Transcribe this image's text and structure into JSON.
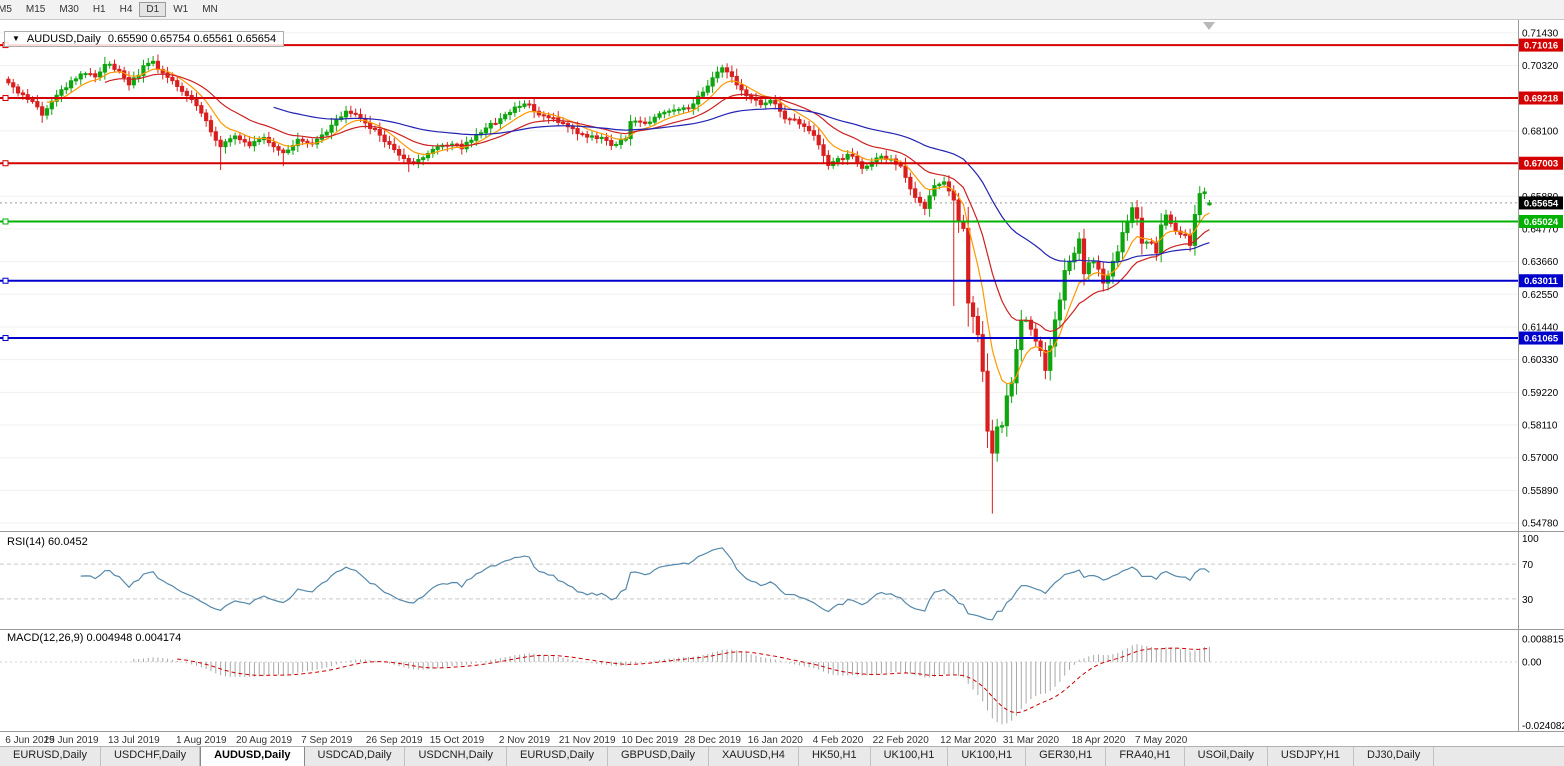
{
  "toolbar": {
    "timeframes": [
      {
        "label": "M5",
        "active": false
      },
      {
        "label": "M15",
        "active": false
      },
      {
        "label": "M30",
        "active": false
      },
      {
        "label": "H1",
        "active": false
      },
      {
        "label": "H4",
        "active": false
      },
      {
        "label": "D1",
        "active": true
      },
      {
        "label": "W1",
        "active": false
      },
      {
        "label": "MN",
        "active": false
      }
    ]
  },
  "chart_header": {
    "dropdown_icon": "▼",
    "symbol": "AUDUSD,Daily",
    "ohlc": "0.65590 0.65754 0.65561 0.65654"
  },
  "rsi_panel": {
    "label": "RSI(14) 60.0452"
  },
  "macd_panel": {
    "label": "MACD(12,26,9) 0.004948 0.004174"
  },
  "tabs": {
    "active_index": 2,
    "items": [
      "EURUSD,Daily",
      "USDCHF,Daily",
      "AUDUSD,Daily",
      "USDCAD,Daily",
      "USDCNH,Daily",
      "EURUSD,Daily",
      "GBPUSD,Daily",
      "XAUUSD,H4",
      "HK50,H1",
      "UK100,H1",
      "UK100,H1",
      "GER30,H1",
      "FRA40,H1",
      "USOil,Daily",
      "USDJPY,H1",
      "DJ30,Daily"
    ]
  },
  "chart_data": {
    "type": "candlestick",
    "symbol": "AUDUSD",
    "timeframe": "Daily",
    "current_candle": {
      "open": 0.6559,
      "high": 0.65754,
      "low": 0.65561,
      "close": 0.65654
    },
    "last_price_label": "0.65654",
    "candle_count": 250,
    "up_color": "#0fa50f",
    "down_color": "#d91f1f",
    "price_axis": {
      "max": 0.718,
      "min": 0.5451,
      "ticks": [
        "0.71430",
        "0.70320",
        "0.69210",
        "0.68100",
        "0.66990",
        "0.65880",
        "0.64770",
        "0.63660",
        "0.62550",
        "0.61440",
        "0.60330",
        "0.59220",
        "0.58110",
        "0.57000",
        "0.55890",
        "0.54780"
      ]
    },
    "horizontal_lines": [
      {
        "price": 0.71016,
        "label": "0.71016",
        "color": "#d40000",
        "kind": "resistance"
      },
      {
        "price": 0.69218,
        "label": "0.69218",
        "color": "#d40000",
        "kind": "resistance"
      },
      {
        "price": 0.67003,
        "label": "0.67003",
        "color": "#d40000",
        "kind": "resistance"
      },
      {
        "price": 0.65024,
        "label": "0.65024",
        "color": "#00b100",
        "kind": "support"
      },
      {
        "price": 0.63011,
        "label": "0.63011",
        "color": "#0000cc",
        "kind": "support"
      },
      {
        "price": 0.61065,
        "label": "0.61065",
        "color": "#0000cc",
        "kind": "support"
      }
    ],
    "moving_averages": [
      {
        "period": 8,
        "color": "#ff9900"
      },
      {
        "period": 20,
        "color": "#cc2222"
      },
      {
        "period": 55,
        "color": "#2323b4"
      }
    ],
    "close_anchors": [
      [
        0,
        0.698
      ],
      [
        2,
        0.6938
      ],
      [
        5,
        0.6905
      ],
      [
        7,
        0.687
      ],
      [
        10,
        0.6928
      ],
      [
        13,
        0.6975
      ],
      [
        16,
        0.701
      ],
      [
        18,
        0.699
      ],
      [
        20,
        0.704
      ],
      [
        23,
        0.701
      ],
      [
        25,
        0.6965
      ],
      [
        28,
        0.7025
      ],
      [
        30,
        0.7042
      ],
      [
        33,
        0.699
      ],
      [
        36,
        0.6945
      ],
      [
        39,
        0.6895
      ],
      [
        41,
        0.684
      ],
      [
        44,
        0.6755
      ],
      [
        47,
        0.679
      ],
      [
        50,
        0.6765
      ],
      [
        53,
        0.6785
      ],
      [
        57,
        0.6735
      ],
      [
        60,
        0.6775
      ],
      [
        63,
        0.677
      ],
      [
        66,
        0.6805
      ],
      [
        70,
        0.688
      ],
      [
        73,
        0.685
      ],
      [
        76,
        0.681
      ],
      [
        79,
        0.676
      ],
      [
        83,
        0.67
      ],
      [
        85,
        0.671
      ],
      [
        88,
        0.6745
      ],
      [
        91,
        0.6765
      ],
      [
        94,
        0.6755
      ],
      [
        96,
        0.678
      ],
      [
        99,
        0.6825
      ],
      [
        102,
        0.685
      ],
      [
        105,
        0.689
      ],
      [
        108,
        0.69
      ],
      [
        110,
        0.6865
      ],
      [
        113,
        0.685
      ],
      [
        116,
        0.6825
      ],
      [
        119,
        0.6795
      ],
      [
        122,
        0.679
      ],
      [
        125,
        0.6765
      ],
      [
        128,
        0.678
      ],
      [
        129,
        0.6848
      ],
      [
        132,
        0.683
      ],
      [
        135,
        0.6865
      ],
      [
        138,
        0.688
      ],
      [
        141,
        0.689
      ],
      [
        144,
        0.694
      ],
      [
        146,
        0.6985
      ],
      [
        148,
        0.7025
      ],
      [
        150,
        0.699
      ],
      [
        153,
        0.6925
      ],
      [
        156,
        0.69
      ],
      [
        158,
        0.692
      ],
      [
        161,
        0.685
      ],
      [
        164,
        0.684
      ],
      [
        167,
        0.68
      ],
      [
        170,
        0.669
      ],
      [
        173,
        0.672
      ],
      [
        175,
        0.673
      ],
      [
        177,
        0.668
      ],
      [
        180,
        0.672
      ],
      [
        183,
        0.6715
      ],
      [
        185,
        0.669
      ],
      [
        187,
        0.661
      ],
      [
        189,
        0.6565
      ],
      [
        190,
        0.6545
      ],
      [
        192,
        0.6625
      ],
      [
        194,
        0.664
      ],
      [
        196,
        0.658
      ],
      [
        197,
        0.6495
      ],
      [
        198,
        0.6485
      ],
      [
        199,
        0.623
      ],
      [
        200,
        0.6185
      ],
      [
        201,
        0.612
      ],
      [
        202,
        0.5995
      ],
      [
        203,
        0.579
      ],
      [
        204,
        0.572
      ],
      [
        205,
        0.58
      ],
      [
        206,
        0.581
      ],
      [
        207,
        0.5905
      ],
      [
        208,
        0.596
      ],
      [
        209,
        0.6065
      ],
      [
        210,
        0.6165
      ],
      [
        211,
        0.617
      ],
      [
        212,
        0.6135
      ],
      [
        213,
        0.6095
      ],
      [
        214,
        0.606
      ],
      [
        215,
        0.5995
      ],
      [
        216,
        0.6085
      ],
      [
        217,
        0.617
      ],
      [
        218,
        0.6235
      ],
      [
        219,
        0.634
      ],
      [
        221,
        0.6395
      ],
      [
        222,
        0.644
      ],
      [
        223,
        0.633
      ],
      [
        224,
        0.636
      ],
      [
        225,
        0.6365
      ],
      [
        226,
        0.634
      ],
      [
        227,
        0.6295
      ],
      [
        228,
        0.632
      ],
      [
        229,
        0.637
      ],
      [
        230,
        0.6395
      ],
      [
        231,
        0.646
      ],
      [
        232,
        0.6495
      ],
      [
        233,
        0.655
      ],
      [
        234,
        0.651
      ],
      [
        235,
        0.6425
      ],
      [
        236,
        0.6435
      ],
      [
        237,
        0.6435
      ],
      [
        238,
        0.64
      ],
      [
        239,
        0.6495
      ],
      [
        240,
        0.653
      ],
      [
        241,
        0.649
      ],
      [
        242,
        0.647
      ],
      [
        243,
        0.6455
      ],
      [
        244,
        0.646
      ],
      [
        245,
        0.6415
      ],
      [
        246,
        0.6525
      ],
      [
        247,
        0.6595
      ],
      [
        248,
        0.66
      ],
      [
        249,
        0.65654
      ]
    ],
    "special_wicks": [
      {
        "index": 44,
        "low": 0.6677
      },
      {
        "index": 57,
        "low": 0.669
      },
      {
        "index": 70,
        "high": 0.6895
      },
      {
        "index": 83,
        "low": 0.667
      },
      {
        "index": 196,
        "low": 0.6215
      },
      {
        "index": 200,
        "low": 0.6123
      },
      {
        "index": 203,
        "low": 0.574
      },
      {
        "index": 204,
        "low": 0.551
      },
      {
        "index": 248,
        "high": 0.6616
      }
    ],
    "indicators": {
      "rsi": {
        "period": 14,
        "current": 60.0452,
        "levels": [
          70,
          30
        ],
        "axis_labels": [
          {
            "label": "100",
            "value": 100
          },
          {
            "label": "70",
            "value": 70
          },
          {
            "label": "30",
            "value": 30
          }
        ],
        "color": "#5588aa"
      },
      "macd": {
        "fast": 12,
        "slow": 26,
        "signal": 9,
        "current_main": 0.004948,
        "current_signal": 0.004174,
        "histogram_color": "#a8a8a8",
        "signal_color": "#cc0000",
        "axis_labels": [
          {
            "label": "0.008815",
            "value": 0.008815
          },
          {
            "label": "0.00",
            "value": 0
          },
          {
            "label": "-0.024082",
            "value": -0.024082
          }
        ]
      }
    },
    "x_axis_dates": [
      {
        "label": "6 Jun 2019",
        "index": 0
      },
      {
        "label": "25 Jun 2019",
        "index": 13
      },
      {
        "label": "13 Jul 2019",
        "index": 26
      },
      {
        "label": "1 Aug 2019",
        "index": 40
      },
      {
        "label": "20 Aug 2019",
        "index": 53
      },
      {
        "label": "7 Sep 2019",
        "index": 66
      },
      {
        "label": "26 Sep 2019",
        "index": 80
      },
      {
        "label": "15 Oct 2019",
        "index": 93
      },
      {
        "label": "2 Nov 2019",
        "index": 107
      },
      {
        "label": "21 Nov 2019",
        "index": 120
      },
      {
        "label": "10 Dec 2019",
        "index": 133
      },
      {
        "label": "28 Dec 2019",
        "index": 146
      },
      {
        "label": "16 Jan 2020",
        "index": 159
      },
      {
        "label": "4 Feb 2020",
        "index": 172
      },
      {
        "label": "22 Feb 2020",
        "index": 185
      },
      {
        "label": "12 Mar 2020",
        "index": 199
      },
      {
        "label": "31 Mar 2020",
        "index": 212
      },
      {
        "label": "18 Apr 2020",
        "index": 226
      },
      {
        "label": "7 May 2020",
        "index": 239
      }
    ]
  }
}
